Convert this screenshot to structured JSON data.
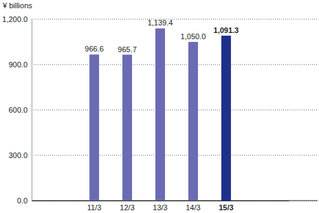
{
  "chart_data": {
    "type": "bar",
    "ylabel": "¥ billions",
    "categories": [
      "11/3",
      "12/3",
      "13/3",
      "14/3",
      "15/3"
    ],
    "values": [
      966.6,
      965.7,
      1139.4,
      1050.0,
      1091.3
    ],
    "value_labels": [
      "966.6",
      "965.7",
      "1,139.4",
      "1,050.0",
      "1,091.3"
    ],
    "colors": [
      "#6b6bb3",
      "#6b6bb3",
      "#6b6bb3",
      "#6b6bb3",
      "#1f2f8c"
    ],
    "ylim": [
      0,
      1200
    ],
    "yticks": [
      {
        "value": 0,
        "label": "0.0"
      },
      {
        "value": 300,
        "label": "300.0"
      },
      {
        "value": 600,
        "label": "600.0"
      },
      {
        "value": 900,
        "label": "900.0"
      },
      {
        "value": 1200,
        "label": "1,200.0"
      }
    ],
    "grid": true,
    "data_labels": true
  }
}
